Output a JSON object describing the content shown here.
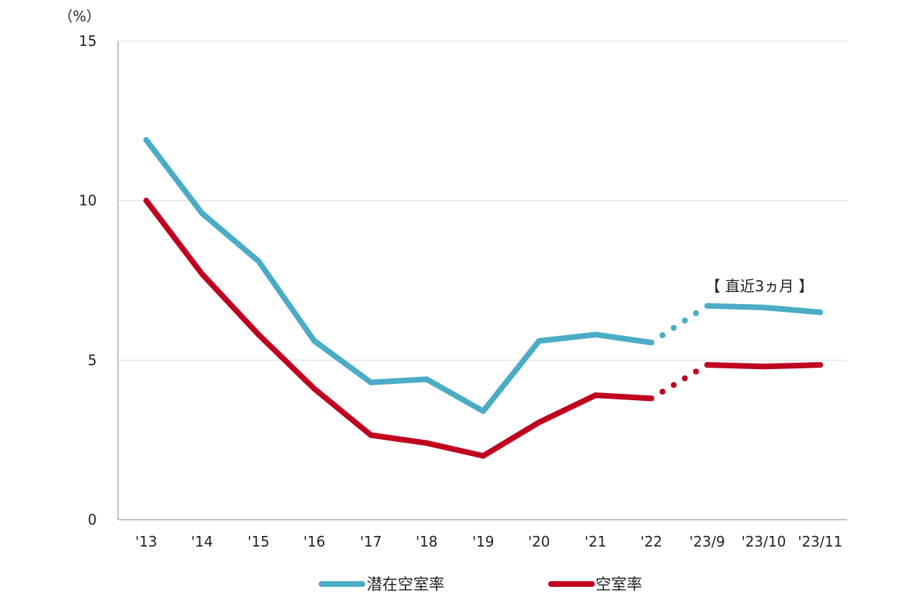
{
  "chart_data": {
    "type": "line",
    "title": "",
    "unit_label": "（%）",
    "xlabel": "",
    "ylabel": "",
    "ylim": [
      0,
      15
    ],
    "yticks": [
      "0",
      "5",
      "10",
      "15"
    ],
    "categories": [
      "'13",
      "'14",
      "'15",
      "'16",
      "'17",
      "'18",
      "'19",
      "'20",
      "'21",
      "'22",
      "'23/9",
      "'23/10",
      "'23/11"
    ],
    "grid": true,
    "legend_position": "bottom",
    "annotation": "【 直近3ヵ月 】",
    "series": [
      {
        "name": "潜在空室率",
        "color": "#4bacc6",
        "values": [
          11.9,
          9.6,
          8.1,
          5.6,
          4.3,
          4.4,
          3.4,
          5.6,
          5.8,
          5.55,
          6.7,
          6.65,
          6.5
        ]
      },
      {
        "name": "空室率",
        "color": "#c0001f",
        "values": [
          10.0,
          7.7,
          5.8,
          4.1,
          2.65,
          2.4,
          2.0,
          3.05,
          3.9,
          3.8,
          4.85,
          4.8,
          4.85
        ]
      }
    ]
  }
}
